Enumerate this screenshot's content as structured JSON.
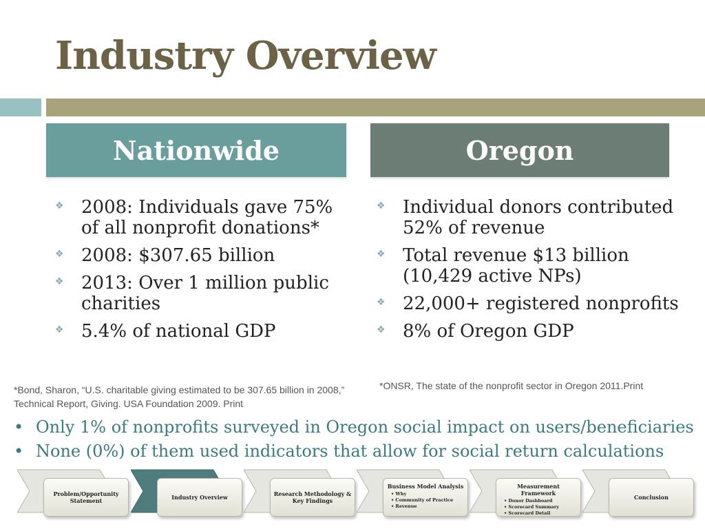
{
  "title": "Industry Overview",
  "columns": {
    "nationwide": {
      "heading": "Nationwide",
      "items": [
        "2008:  Individuals gave 75% of all nonprofit donations*",
        "2008:  $307.65 billion",
        "2013:  Over 1 million public charities",
        "5.4% of national GDP"
      ],
      "footnote": "*Bond, Sharon, “U.S. charitable giving estimated to be 307.65 billion in 2008,” Technical Report, Giving. USA Foundation 2009. Print"
    },
    "oregon": {
      "heading": "Oregon",
      "items": [
        "Individual donors contributed 52% of revenue",
        "Total revenue $13 billion (10,429 active NPs)",
        "22,000+ registered nonprofits",
        "8% of Oregon GDP"
      ],
      "footnote": "*ONSR, The state of the nonprofit sector in Oregon 2011.Print"
    }
  },
  "bottom_points": [
    "Only 1% of nonprofits surveyed in Oregon social impact on users/beneficiaries",
    "None (0%) of them used indicators that allow for social return calculations"
  ],
  "bullet_icon": "diamond-cluster-icon",
  "nav_steps": [
    {
      "label": "Problem/Opportunity Statement",
      "sub": []
    },
    {
      "label": "Industry Overview",
      "sub": [],
      "active": true
    },
    {
      "label": "Research Methodology & Key Findings",
      "sub": []
    },
    {
      "label": "Business Model Analysis",
      "sub": [
        "Why",
        "Community of Practice",
        "Revenue"
      ]
    },
    {
      "label": "Measurement Framework",
      "sub": [
        "Donor Dashboard",
        "Scorecard Summary",
        "Scorecard Detail"
      ]
    },
    {
      "label": "Conclusion",
      "sub": []
    }
  ],
  "colors": {
    "title": "#6b6248",
    "nationwide_header": "#6a9e9c",
    "oregon_header": "#6b7d74",
    "accent_bar": "#a9a37c",
    "chevron_active": "#4f7d7d",
    "chevron_inactive": "#e6e6e0"
  }
}
